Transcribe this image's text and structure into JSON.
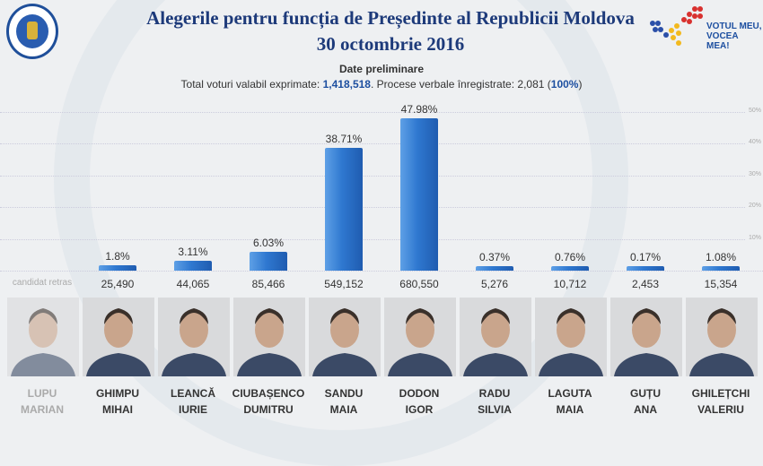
{
  "header": {
    "title_line1": "Alegerile pentru funcția de Președinte al Republicii Moldova",
    "title_line2": "30 octombrie 2016",
    "brand_line1": "VOTUL MEU,",
    "brand_line2": "VOCEA MEA!",
    "subtitle": "Date preliminare",
    "summary_prefix": "Total voturi valabil exprimate: ",
    "total_votes": "1,418,518",
    "summary_mid": ". Procese verbale înregistrate: 2,081 (",
    "percent_processed": "100%",
    "summary_suffix": ")"
  },
  "chart_data": {
    "type": "bar",
    "categories": [
      "LUPU MARIAN",
      "GHIMPU MIHAI",
      "LEANCĂ IURIE",
      "CIUBAȘENCO DUMITRU",
      "SANDU MAIA",
      "DODON IGOR",
      "RADU SILVIA",
      "LAGUTA MAIA",
      "GUȚU ANA",
      "GHILEȚCHI VALERIU"
    ],
    "values": [
      null,
      1.8,
      3.11,
      6.03,
      38.71,
      47.98,
      0.37,
      0.76,
      0.17,
      1.08
    ],
    "value_labels": [
      "",
      "1.8%",
      "3.11%",
      "6.03%",
      "38.71%",
      "47.98%",
      "0.37%",
      "0.76%",
      "0.17%",
      "1.08%"
    ],
    "ylim": [
      0,
      50
    ],
    "yticks": [
      "10%",
      "20%",
      "30%",
      "40%",
      "50%"
    ],
    "grid": true,
    "bar_color": "#2f78d0"
  },
  "candidates": [
    {
      "surname": "LUPU",
      "first": "MARIAN",
      "votes": "candidat retras",
      "retired": true
    },
    {
      "surname": "GHIMPU",
      "first": "MIHAI",
      "votes": "25,490"
    },
    {
      "surname": "LEANCĂ",
      "first": "IURIE",
      "votes": "44,065"
    },
    {
      "surname": "CIUBAȘENCO",
      "first": "DUMITRU",
      "votes": "85,466"
    },
    {
      "surname": "SANDU",
      "first": "MAIA",
      "votes": "549,152"
    },
    {
      "surname": "DODON",
      "first": "IGOR",
      "votes": "680,550"
    },
    {
      "surname": "RADU",
      "first": "SILVIA",
      "votes": "5,276"
    },
    {
      "surname": "LAGUTA",
      "first": "MAIA",
      "votes": "10,712"
    },
    {
      "surname": "GUȚU",
      "first": "ANA",
      "votes": "2,453"
    },
    {
      "surname": "GHILEȚCHI",
      "first": "VALERIU",
      "votes": "15,354"
    }
  ]
}
